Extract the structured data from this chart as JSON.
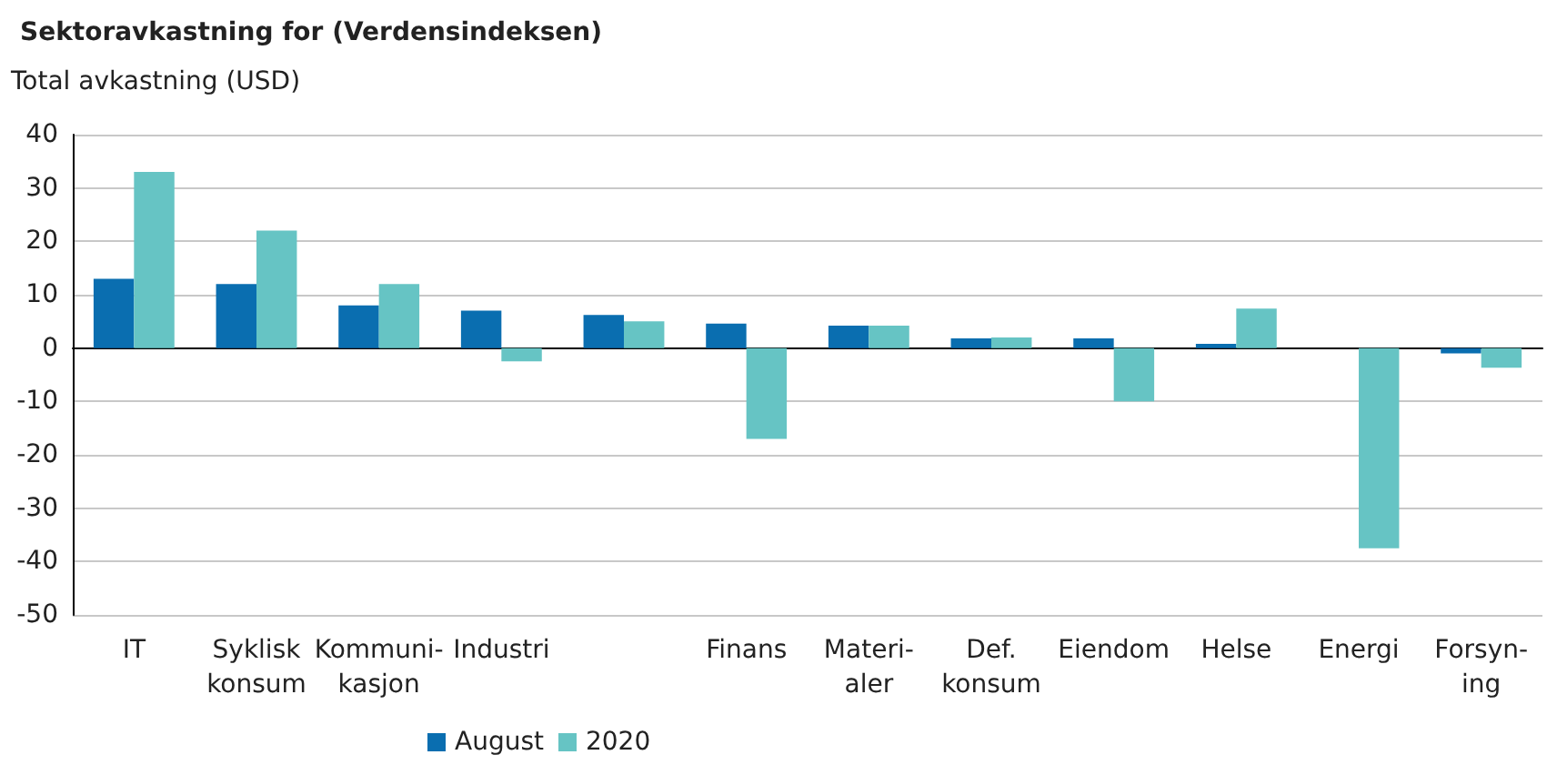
{
  "chart_data": {
    "type": "bar",
    "title": "Sektoravkastning for (Verdensindeksen)",
    "ylabel": "Total avkastning (USD)",
    "categories": [
      "IT",
      "Syklisk\nkonsum",
      "Kommuni-\nkasjon",
      "Industri",
      null,
      "Finans",
      "Materi-\naler",
      "Def.\nkonsum",
      "Eiendom",
      "Helse",
      "Energi",
      "Forsyn-\ning"
    ],
    "series": [
      {
        "name": "August",
        "color": "#0a6eb0",
        "values": [
          13,
          12,
          8,
          7,
          6.2,
          4.6,
          4.2,
          1.8,
          1.8,
          0.8,
          0,
          -1
        ]
      },
      {
        "name": "2020",
        "color": "#66c4c4",
        "values": [
          33,
          22,
          12,
          -2.5,
          5,
          -17,
          4.2,
          2,
          -10,
          7.4,
          -37.5,
          -3.7
        ]
      }
    ],
    "ylim": [
      -50,
      40
    ],
    "yticks": [
      -50,
      -40,
      -30,
      -20,
      -10,
      0,
      10,
      20,
      30,
      40
    ],
    "grid": "y",
    "legend": "bottom"
  }
}
